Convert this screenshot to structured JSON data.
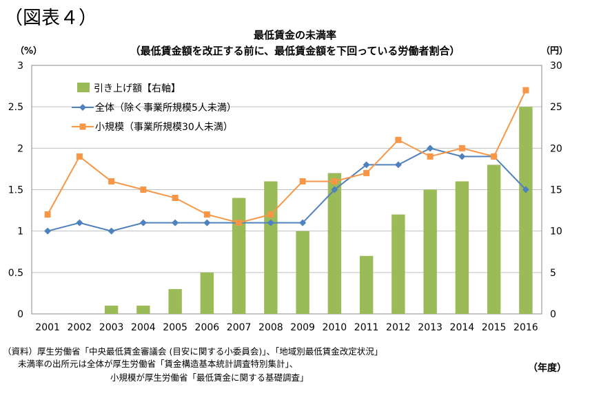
{
  "figure_label": "（図表４）",
  "title": "最低賃金の未満率",
  "subtitle": "（最低賃金額を改正する前に、最低賃金額を下回っている労働者割合）",
  "units": {
    "left": "（%）",
    "right": "（円）",
    "x": "（年度）"
  },
  "notes": [
    "（資料）厚生労働省「中央最低賃金審議会 (目安に関する小委員会)」、「地域別最低賃金改定状況」",
    "未満率の出所元は全体が厚生労働省「賃金構造基本統計調査特別集計」、",
    "小規模が厚生労働省「最低賃金に関する基礎調査」"
  ],
  "colors": {
    "bar": "#9bbb59",
    "all": "#4f81bd",
    "small": "#f79646",
    "grid": "#bfbfbf"
  },
  "chart_data": {
    "type": "bar+line",
    "categories": [
      "2001",
      "2002",
      "2003",
      "2004",
      "2005",
      "2006",
      "2007",
      "2008",
      "2009",
      "2010",
      "2011",
      "2012",
      "2013",
      "2014",
      "2015",
      "2016"
    ],
    "ylim_left": [
      0,
      3
    ],
    "ylim_right": [
      0,
      30
    ],
    "left_ticks": [
      "0",
      "0.5",
      "1",
      "1.5",
      "2",
      "2.5",
      "3"
    ],
    "right_ticks": [
      "0",
      "5",
      "10",
      "15",
      "20",
      "25",
      "30"
    ],
    "grid": true,
    "legend_position": "top-left",
    "bars": {
      "name": "引き上げ額【右軸】",
      "axis": "right",
      "values": [
        0,
        0,
        1,
        1,
        3,
        5,
        14,
        16,
        10,
        17,
        7,
        12,
        15,
        16,
        18,
        25
      ]
    },
    "series": [
      {
        "name": "全体（除く事業所規模5人未満）",
        "axis": "left",
        "values": [
          1.0,
          1.1,
          1.0,
          1.1,
          1.1,
          1.1,
          1.1,
          1.1,
          1.1,
          1.5,
          1.8,
          1.8,
          2.0,
          1.9,
          1.9,
          1.5
        ]
      },
      {
        "name": "小規模（事業所規模30人未満）",
        "axis": "left",
        "values": [
          1.2,
          1.9,
          1.6,
          1.5,
          1.4,
          1.2,
          1.1,
          1.2,
          1.6,
          1.6,
          1.7,
          2.1,
          1.9,
          2.0,
          1.9,
          2.7
        ]
      }
    ]
  }
}
